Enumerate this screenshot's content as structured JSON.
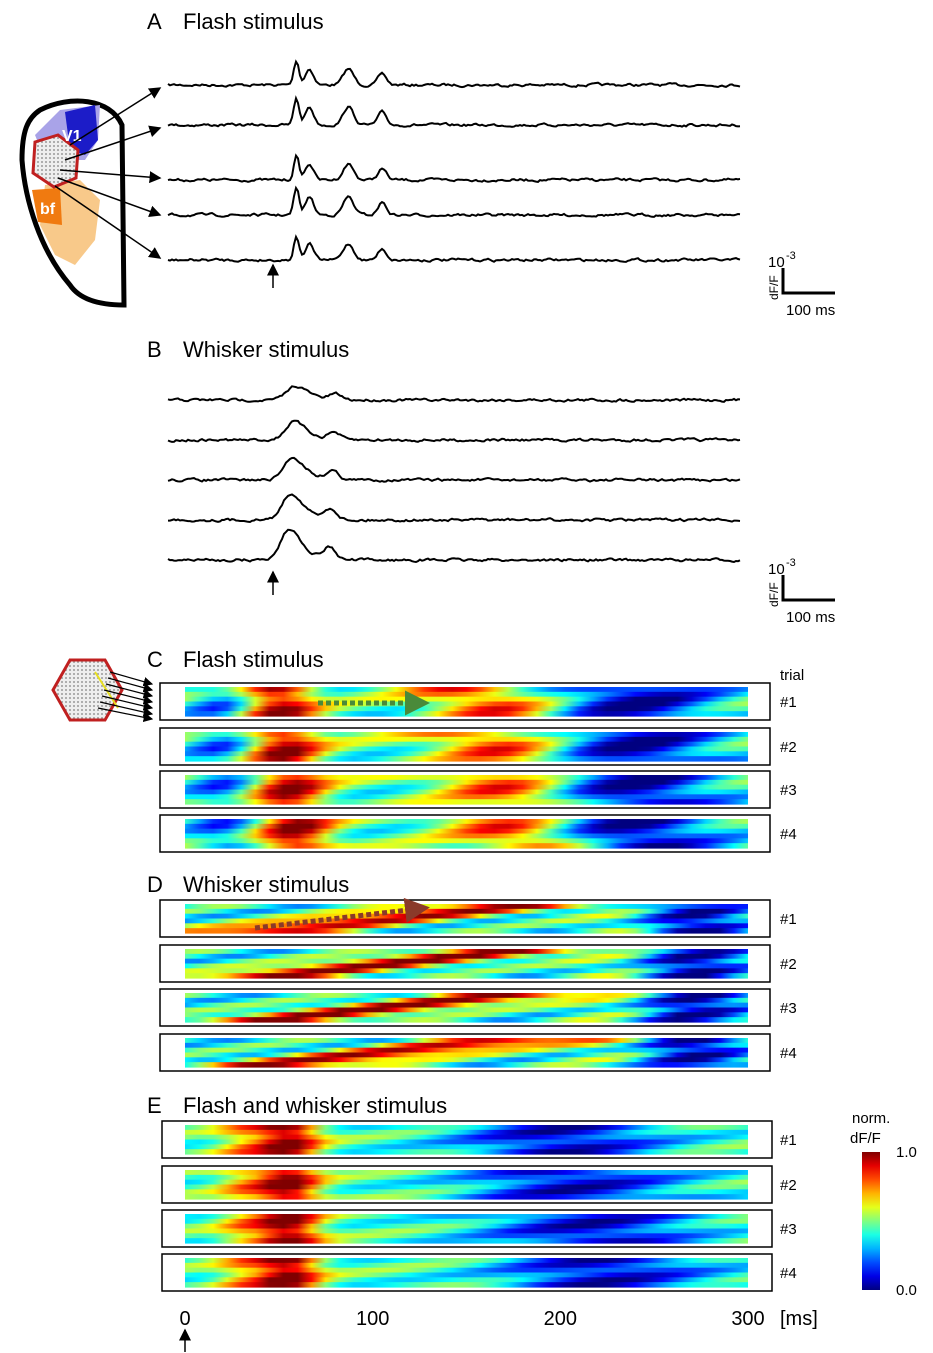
{
  "panels": [
    {
      "label": "A",
      "title": "Flash stimulus",
      "scale_bar": {
        "base": "10",
        "exponent": "-3",
        "y_label": "dF/F",
        "x_label": "100 ms"
      }
    },
    {
      "label": "B",
      "title": "Whisker stimulus",
      "scale_bar": {
        "base": "10",
        "exponent": "-3",
        "y_label": "dF/F",
        "x_label": "100 ms"
      }
    },
    {
      "label": "C",
      "title": "Flash stimulus",
      "trials": [
        "#1",
        "#2",
        "#3",
        "#4"
      ]
    },
    {
      "label": "D",
      "title": "Whisker stimulus",
      "trials": [
        "#1",
        "#2",
        "#3",
        "#4"
      ]
    },
    {
      "label": "E",
      "title": "Flash and whisker stimulus",
      "trials": [
        "#1",
        "#2",
        "#3",
        "#4"
      ]
    }
  ],
  "schematic": {
    "labels": [
      "V1",
      "bf"
    ]
  },
  "trial_header": "trial",
  "time_axis": {
    "xlim": [
      0,
      300
    ],
    "xticks": [
      0,
      100,
      200,
      300
    ],
    "unit": "[ms]"
  },
  "colorbar": {
    "label": [
      "norm.",
      "dF/F"
    ],
    "ticks": [
      {
        "value": 1,
        "label": "1.0"
      },
      {
        "value": 0,
        "label": "0.0"
      }
    ]
  }
}
